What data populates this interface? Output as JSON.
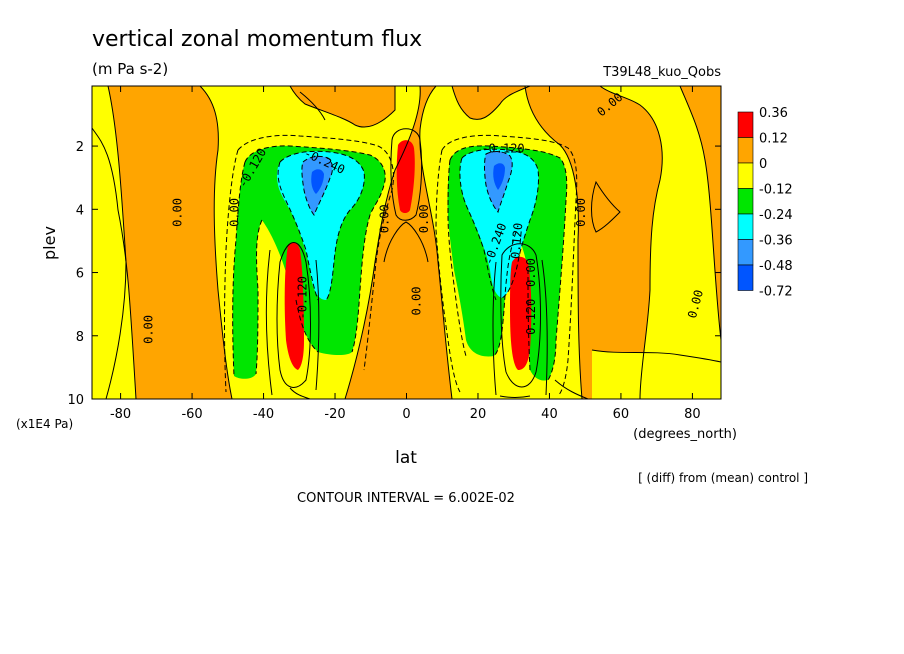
{
  "chart_data": {
    "type": "heatmap",
    "title": "vertical zonal momentum flux",
    "subtitle": "(m Pa s-2)",
    "experiment": "T39L48_kuo_Qobs",
    "xlabel": "lat",
    "xunits": "(degrees_north)",
    "ylabel": "plev",
    "yunits": "(x1E4 Pa)",
    "note": "[ (diff) from (mean) control ]",
    "contour_interval": "CONTOUR INTERVAL = 6.002E-02",
    "xlim": [
      -88,
      88
    ],
    "ylim": [
      10,
      0.1
    ],
    "x_ticks": [
      -80,
      -60,
      -40,
      -20,
      0,
      20,
      40,
      60,
      80
    ],
    "y_ticks": [
      2,
      4,
      6,
      8,
      10
    ],
    "legend": {
      "labels": [
        "0.36",
        "0.12",
        "0",
        "-0.12",
        "-0.24",
        "-0.36",
        "-0.48",
        "-0.72"
      ],
      "colors": [
        "#ff0000",
        "#ffa500",
        "#ffff00",
        "#00e600",
        "#00ffff",
        "#3399ff",
        "#0055ff"
      ]
    },
    "contour_labels": [
      {
        "text": "0.00",
        "x": -72,
        "y": 7.8,
        "rot": -90
      },
      {
        "text": "0.00",
        "x": -64,
        "y": 4.1,
        "rot": -90
      },
      {
        "text": "0.00",
        "x": -48,
        "y": 4.1,
        "rot": -90
      },
      {
        "text": "-0.120",
        "x": -43,
        "y": 2.7,
        "rot": -60
      },
      {
        "text": "-0.240",
        "x": -23,
        "y": 2.5,
        "rot": 25
      },
      {
        "text": "-0.120",
        "x": -29,
        "y": 6.8,
        "rot": -90
      },
      {
        "text": "0.00",
        "x": -6,
        "y": 4.3,
        "rot": -90
      },
      {
        "text": "0.00",
        "x": 5,
        "y": 4.3,
        "rot": -90
      },
      {
        "text": "0.00",
        "x": 3,
        "y": 6.9,
        "rot": -90
      },
      {
        "text": "-0.120",
        "x": 27,
        "y": 2.1,
        "rot": 0
      },
      {
        "text": "-0.240",
        "x": 25,
        "y": 5.1,
        "rot": -70
      },
      {
        "text": "0.120",
        "x": 31,
        "y": 5.0,
        "rot": -85
      },
      {
        "text": "0.00",
        "x": 35,
        "y": 6.0,
        "rot": -90
      },
      {
        "text": "0.120",
        "x": 35,
        "y": 7.4,
        "rot": -90
      },
      {
        "text": "0.00",
        "x": 49,
        "y": 4.1,
        "rot": -90
      },
      {
        "text": "0.00",
        "x": 57,
        "y": 0.7,
        "rot": -40
      },
      {
        "text": "0.00",
        "x": 81,
        "y": 7.0,
        "rot": -75
      }
    ]
  }
}
